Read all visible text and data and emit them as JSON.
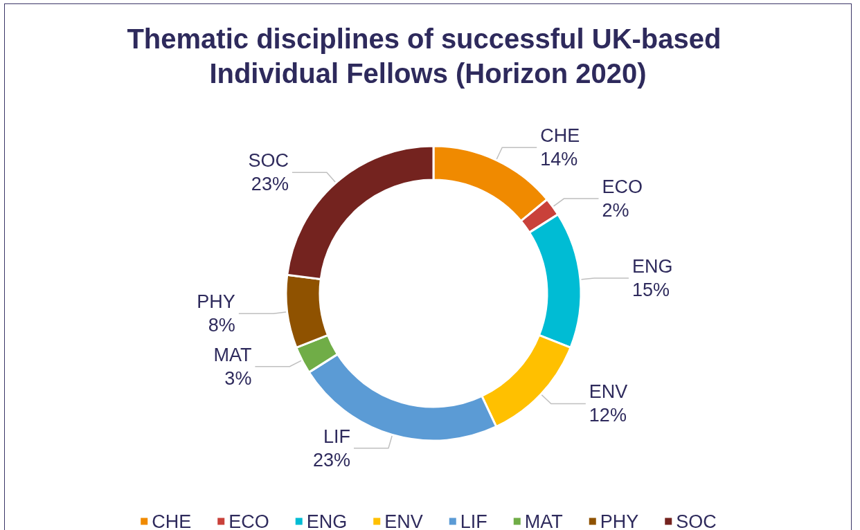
{
  "chart_data": {
    "type": "donut",
    "title": "Thematic disciplines of successful UK-based Individual Fellows (Horizon 2020)",
    "categories": [
      "CHE",
      "ECO",
      "ENG",
      "ENV",
      "LIF",
      "MAT",
      "PHY",
      "SOC"
    ],
    "values": [
      14,
      2,
      15,
      12,
      23,
      3,
      8,
      23
    ],
    "value_labels": [
      "14%",
      "2%",
      "15%",
      "12%",
      "23%",
      "3%",
      "8%",
      "23%"
    ],
    "colors": [
      "#f08a00",
      "#c9413a",
      "#00bcd4",
      "#ffc000",
      "#5b9bd5",
      "#70ad47",
      "#8f5200",
      "#74231f"
    ],
    "legend": "bottom"
  }
}
